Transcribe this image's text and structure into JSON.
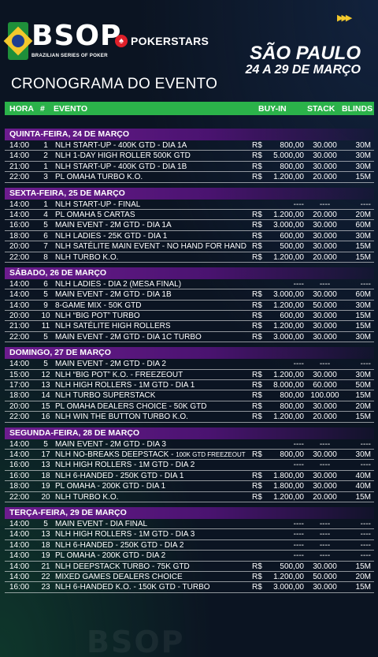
{
  "header": {
    "bsop_word": "BSOP",
    "bsop_sub": "BRAZILIAN SERIES OF POKER",
    "pokerstars": "POKERSTARS",
    "city": "SÃO PAULO",
    "dates": "24 A 29 DE MARÇO",
    "title": "CRONOGRAMA DO EVENTO",
    "arrows": "▶▶▶"
  },
  "columns": {
    "hora": "HORA",
    "num": "#",
    "evento": "EVENTO",
    "buyin": "BUY-IN",
    "stack": "STACK",
    "blinds": "BLINDS"
  },
  "colors": {
    "accent_green": "#2bb24a",
    "day_purple": "#6d1c8f",
    "brand_yellow": "#f3c82c",
    "pokerstars_red": "#e0202a"
  },
  "days": [
    {
      "label": "QUINTA-FEIRA, 24 DE MARÇO",
      "rows": [
        {
          "hora": "14:00",
          "num": "1",
          "event": "NLH START-UP - 400K GTD - DIA 1A",
          "cur": "R$",
          "buyin": "800,00",
          "stack": "30.000",
          "blinds": "30M"
        },
        {
          "hora": "14:00",
          "num": "2",
          "event": "NLH 1-DAY HIGH ROLLER 500K GTD",
          "cur": "R$",
          "buyin": "5.000,00",
          "stack": "30.000",
          "blinds": "30M"
        },
        {
          "hora": "21:00",
          "num": "1",
          "event": "NLH START-UP - 400K GTD - DIA 1B",
          "cur": "R$",
          "buyin": "800,00",
          "stack": "30.000",
          "blinds": "30M"
        },
        {
          "hora": "22:00",
          "num": "3",
          "event": "PL OMAHA TURBO K.O.",
          "cur": "R$",
          "buyin": "1.200,00",
          "stack": "20.000",
          "blinds": "15M"
        }
      ]
    },
    {
      "label": "SEXTA-FEIRA, 25 DE MARÇO",
      "rows": [
        {
          "hora": "14:00",
          "num": "1",
          "event": "NLH START-UP - FINAL",
          "cur": "",
          "buyin": "----",
          "stack": "----",
          "blinds": "----"
        },
        {
          "hora": "14:00",
          "num": "4",
          "event": "PL OMAHA 5 CARTAS",
          "cur": "R$",
          "buyin": "1.200,00",
          "stack": "20.000",
          "blinds": "20M"
        },
        {
          "hora": "16:00",
          "num": "5",
          "event": "MAIN EVENT - 2M GTD - DIA 1A",
          "cur": "R$",
          "buyin": "3.000,00",
          "stack": "30.000",
          "blinds": "60M"
        },
        {
          "hora": "18:00",
          "num": "6",
          "event": "NLH LADIES - 25K GTD - DIA 1",
          "cur": "R$",
          "buyin": "600,00",
          "stack": "30.000",
          "blinds": "30M"
        },
        {
          "hora": "20:00",
          "num": "7",
          "event": "NLH SATÉLITE MAIN EVENT - NO HAND FOR HAND",
          "cur": "R$",
          "buyin": "500,00",
          "stack": "30.000",
          "blinds": "15M"
        },
        {
          "hora": "22:00",
          "num": "8",
          "event": "NLH TURBO K.O.",
          "cur": "R$",
          "buyin": "1.200,00",
          "stack": "20.000",
          "blinds": "15M"
        }
      ]
    },
    {
      "label": "SÁBADO, 26 DE MARÇO",
      "rows": [
        {
          "hora": "14:00",
          "num": "6",
          "event": "NLH LADIES - DIA 2 (MESA FINAL)",
          "cur": "",
          "buyin": "----",
          "stack": "----",
          "blinds": "----"
        },
        {
          "hora": "14:00",
          "num": "5",
          "event": "MAIN EVENT - 2M GTD - DIA 1B",
          "cur": "R$",
          "buyin": "3.000,00",
          "stack": "30.000",
          "blinds": "60M"
        },
        {
          "hora": "14:00",
          "num": "9",
          "event": "8-GAME MIX - 50K GTD",
          "cur": "R$",
          "buyin": "1.200,00",
          "stack": "50.000",
          "blinds": "30M"
        },
        {
          "hora": "20:00",
          "num": "10",
          "event": "NLH “BIG POT” TURBO",
          "cur": "R$",
          "buyin": "600,00",
          "stack": "30.000",
          "blinds": "15M"
        },
        {
          "hora": "21:00",
          "num": "11",
          "event": "NLH SATÉLITE HIGH ROLLERS",
          "cur": "R$",
          "buyin": "1.200,00",
          "stack": "30.000",
          "blinds": "15M"
        },
        {
          "hora": "22:00",
          "num": "5",
          "event": "MAIN EVENT - 2M GTD - DIA 1C TURBO",
          "cur": "R$",
          "buyin": "3.000,00",
          "stack": "30.000",
          "blinds": "30M"
        }
      ]
    },
    {
      "label": "DOMINGO, 27 DE MARÇO",
      "rows": [
        {
          "hora": "14:00",
          "num": "5",
          "event": "MAIN EVENT - 2M GTD - DIA 2",
          "cur": "",
          "buyin": "----",
          "stack": "----",
          "blinds": "----"
        },
        {
          "hora": "15:00",
          "num": "12",
          "event": "NLH “BIG POT” K.O. - FREEZEOUT",
          "cur": "R$",
          "buyin": "1.200,00",
          "stack": "30.000",
          "blinds": "30M"
        },
        {
          "hora": "17:00",
          "num": "13",
          "event": "NLH HIGH ROLLERS - 1M GTD - DIA 1",
          "cur": "R$",
          "buyin": "8.000,00",
          "stack": "60.000",
          "blinds": "50M"
        },
        {
          "hora": "18:00",
          "num": "14",
          "event": "NLH TURBO SUPERSTACK",
          "cur": "R$",
          "buyin": "800,00",
          "stack": "100.000",
          "blinds": "15M"
        },
        {
          "hora": "20:00",
          "num": "15",
          "event": "PL OMAHA DEALERS CHOICE - 50K GTD",
          "cur": "R$",
          "buyin": "800,00",
          "stack": "30.000",
          "blinds": "20M"
        },
        {
          "hora": "22:00",
          "num": "16",
          "event": "NLH WIN THE BUTTON TURBO K.O.",
          "cur": "R$",
          "buyin": "1.200,00",
          "stack": "20.000",
          "blinds": "15M"
        }
      ]
    },
    {
      "label": "SEGUNDA-FEIRA, 28 DE MARÇO",
      "rows": [
        {
          "hora": "14:00",
          "num": "5",
          "event": "MAIN EVENT - 2M GTD - DIA 3",
          "cur": "",
          "buyin": "----",
          "stack": "----",
          "blinds": "----"
        },
        {
          "hora": "14:00",
          "num": "17",
          "event": "NLH  NO-BREAKS DEEPSTACK - ",
          "event_small": "100K GTD FREEZEOUT",
          "cur": "R$",
          "buyin": "800,00",
          "stack": "30.000",
          "blinds": "30M"
        },
        {
          "hora": "16:00",
          "num": "13",
          "event": "NLH HIGH ROLLERS - 1M GTD - DIA 2",
          "cur": "",
          "buyin": "----",
          "stack": "----",
          "blinds": "----"
        },
        {
          "hora": "16:00",
          "num": "18",
          "event": "NLH 6-HANDED - 250K GTD - DIA 1",
          "cur": "R$",
          "buyin": "1.800,00",
          "stack": "30.000",
          "blinds": "40M"
        },
        {
          "hora": "18:00",
          "num": "19",
          "event": "PL OMAHA - 200K GTD - DIA 1",
          "cur": "R$",
          "buyin": "1.800,00",
          "stack": "30.000",
          "blinds": "40M"
        },
        {
          "hora": "22:00",
          "num": "20",
          "event": "NLH TURBO K.O.",
          "cur": "R$",
          "buyin": "1.200,00",
          "stack": "20.000",
          "blinds": "15M"
        }
      ]
    },
    {
      "label": "TERÇA-FEIRA, 29 DE MARÇO",
      "rows": [
        {
          "hora": "14:00",
          "num": "5",
          "event": "MAIN EVENT - DIA FINAL",
          "cur": "",
          "buyin": "----",
          "stack": "----",
          "blinds": "----"
        },
        {
          "hora": "14:00",
          "num": "13",
          "event": "NLH HIGH ROLLERS - 1M GTD - DIA 3",
          "cur": "",
          "buyin": "----",
          "stack": "----",
          "blinds": "----"
        },
        {
          "hora": "14:00",
          "num": "18",
          "event": "NLH 6-HANDED - 250K GTD - DIA 2",
          "cur": "",
          "buyin": "----",
          "stack": "----",
          "blinds": "----"
        },
        {
          "hora": "14:00",
          "num": "19",
          "event": "PL OMAHA - 200K GTD - DIA 2",
          "cur": "",
          "buyin": "----",
          "stack": "----",
          "blinds": "----"
        },
        {
          "hora": "14:00",
          "num": "21",
          "event": "NLH DEEPSTACK TURBO - 75K GTD",
          "cur": "R$",
          "buyin": "500,00",
          "stack": "30.000",
          "blinds": "15M"
        },
        {
          "hora": "14:00",
          "num": "22",
          "event": "MIXED GAMES DEALERS CHOICE",
          "cur": "R$",
          "buyin": "1.200,00",
          "stack": "50.000",
          "blinds": "20M"
        },
        {
          "hora": "16:00",
          "num": "23",
          "event": "NLH 6-HANDED K.O. - 150K GTD - TURBO",
          "cur": "R$",
          "buyin": "3.000,00",
          "stack": "30.000",
          "blinds": "15M"
        }
      ]
    }
  ]
}
